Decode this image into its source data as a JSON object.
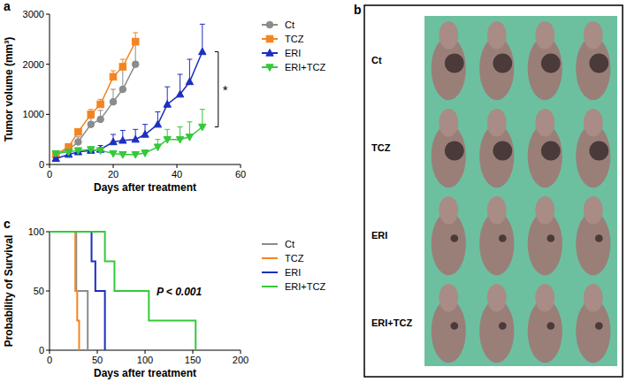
{
  "chart_data": [
    {
      "type": "line",
      "panel_label": "a",
      "x_label": "Days after treatment",
      "y_label": "Tumor volume (mm³)",
      "xlim": [
        0,
        60
      ],
      "xticks": [
        0,
        20,
        40,
        60
      ],
      "ylim": [
        0,
        3000
      ],
      "yticks": [
        0,
        1000,
        2000,
        3000
      ],
      "legend": "right",
      "annotations": [
        "*"
      ],
      "series": [
        {
          "name": "Ct",
          "color": "#8c8c8c",
          "marker": "circle",
          "x": [
            2,
            6,
            9,
            13,
            16,
            20,
            23,
            27
          ],
          "values": [
            200,
            300,
            450,
            800,
            900,
            1250,
            1500,
            2000
          ],
          "errors": [
            40,
            60,
            100,
            120,
            180,
            250,
            400,
            500
          ]
        },
        {
          "name": "TCZ",
          "color": "#f28522",
          "marker": "square",
          "x": [
            2,
            6,
            9,
            13,
            16,
            20,
            23,
            27
          ],
          "values": [
            200,
            350,
            650,
            1000,
            1200,
            1750,
            1950,
            2450
          ],
          "errors": [
            30,
            50,
            60,
            100,
            100,
            120,
            150,
            180
          ]
        },
        {
          "name": "ERI",
          "color": "#1c2fbf",
          "marker": "triangle-up",
          "x": [
            2,
            6,
            9,
            13,
            16,
            20,
            23,
            27,
            30,
            34,
            37,
            41,
            44,
            48
          ],
          "values": [
            120,
            200,
            250,
            280,
            300,
            450,
            480,
            500,
            600,
            800,
            1200,
            1400,
            1650,
            2250
          ],
          "errors": [
            20,
            40,
            60,
            60,
            80,
            150,
            200,
            200,
            200,
            250,
            350,
            400,
            450,
            550
          ]
        },
        {
          "name": "ERI+TCZ",
          "color": "#35c93a",
          "marker": "triangle-down",
          "x": [
            2,
            6,
            9,
            13,
            16,
            20,
            23,
            27,
            30,
            34,
            37,
            41,
            44,
            48
          ],
          "values": [
            220,
            250,
            280,
            300,
            280,
            220,
            200,
            200,
            230,
            350,
            500,
            500,
            550,
            750
          ],
          "errors": [
            30,
            40,
            40,
            50,
            50,
            40,
            40,
            50,
            60,
            150,
            200,
            250,
            300,
            350
          ]
        }
      ]
    },
    {
      "type": "step",
      "panel_label": "c",
      "x_label": "Days after treatment",
      "y_label": "Probability of Survival",
      "xlim": [
        0,
        200
      ],
      "xticks": [
        0,
        50,
        100,
        150,
        200
      ],
      "ylim": [
        0,
        100
      ],
      "yticks": [
        0,
        50,
        100
      ],
      "legend": "right",
      "annotations": [
        "P < 0.001"
      ],
      "series": [
        {
          "name": "Ct",
          "color": "#8c8c8c",
          "x": [
            0,
            28,
            40
          ],
          "values": [
            100,
            50,
            0
          ]
        },
        {
          "name": "TCZ",
          "color": "#f28522",
          "x": [
            0,
            27,
            29,
            31
          ],
          "values": [
            100,
            50,
            25,
            0
          ]
        },
        {
          "name": "ERI",
          "color": "#1c2fbf",
          "x": [
            0,
            44,
            48,
            58
          ],
          "values": [
            100,
            75,
            50,
            0
          ]
        },
        {
          "name": "ERI+TCZ",
          "color": "#35c93a",
          "x": [
            0,
            58,
            68,
            104,
            153
          ],
          "values": [
            100,
            75,
            50,
            25,
            0
          ]
        }
      ]
    }
  ],
  "photo_panel": {
    "panel_label": "b",
    "rows": [
      "Ct",
      "TCZ",
      "ERI",
      "ERI+TCZ"
    ]
  }
}
